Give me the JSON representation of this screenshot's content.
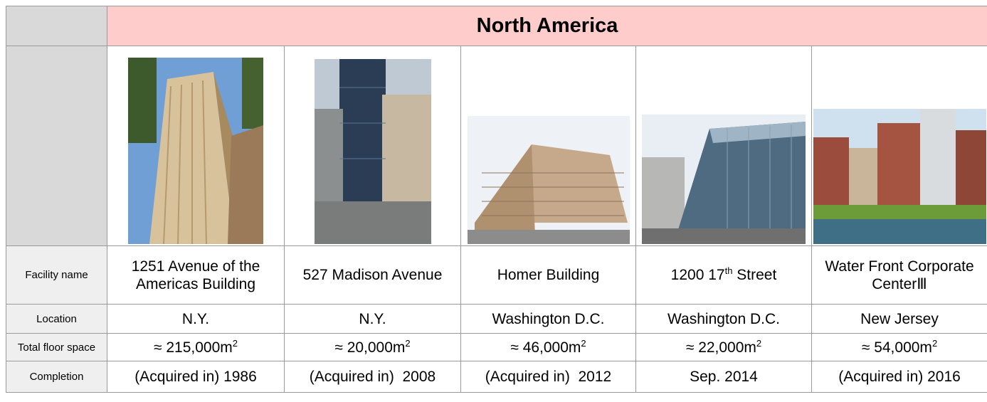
{
  "header": {
    "title": "North America"
  },
  "rows": [
    {
      "label": "Facility name",
      "cells": [
        {
          "text": "1251 Avenue of the Americas Building"
        },
        {
          "text": "527 Madison Avenue"
        },
        {
          "text": "Homer Building"
        },
        {
          "text": "1200 17",
          "sup": "th",
          "tail": " Street"
        },
        {
          "text": "Water Front Corporate CenterⅢ"
        }
      ]
    },
    {
      "label": "Location",
      "cells": [
        {
          "text": "N.Y."
        },
        {
          "text": "N.Y."
        },
        {
          "text": "Washington D.C."
        },
        {
          "text": "Washington D.C."
        },
        {
          "text": "New Jersey"
        }
      ]
    },
    {
      "label": "Total floor space",
      "cells": [
        {
          "text": "≈ 215,000m",
          "sup": "2"
        },
        {
          "text": "≈ 20,000m",
          "sup": "2"
        },
        {
          "text": "≈ 46,000m",
          "sup": "2"
        },
        {
          "text": "≈ 22,000m",
          "sup": "2"
        },
        {
          "text": "≈ 54,000m",
          "sup": "2"
        }
      ]
    },
    {
      "label": "Completion",
      "cells": [
        {
          "text": "(Acquired in) 1986"
        },
        {
          "text": "(Acquired in)  2008"
        },
        {
          "text": "(Acquired in)  2012"
        },
        {
          "text": "Sep. 2014"
        },
        {
          "text": "(Acquired in) 2016"
        }
      ]
    }
  ]
}
